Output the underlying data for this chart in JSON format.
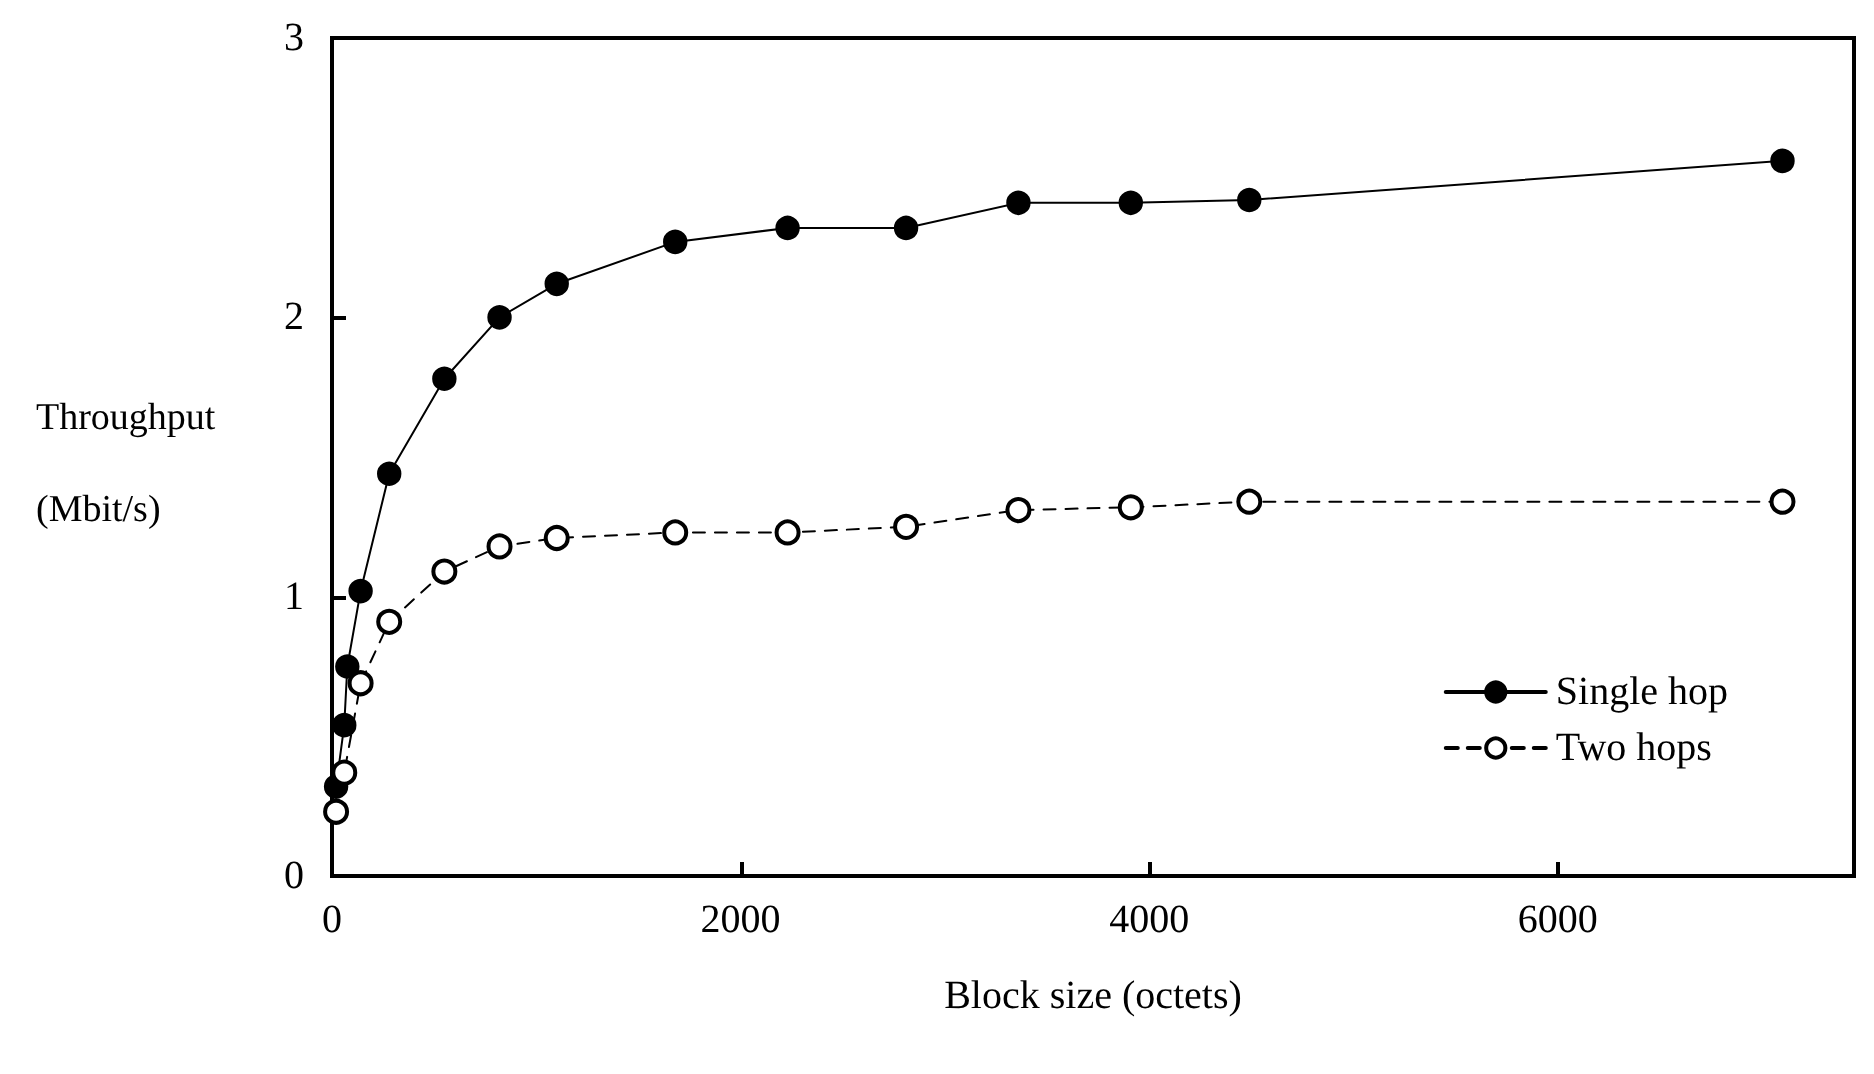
{
  "chart_data": {
    "type": "line",
    "xlabel": "Block size (octets)",
    "ylabel": "Throughput (Mbit/s)",
    "xlim": [
      0,
      7450
    ],
    "xticks": [
      0,
      2000,
      4000,
      6000
    ],
    "ylim": [
      0,
      3
    ],
    "yticks": [
      0,
      1,
      2,
      3
    ],
    "grid": false,
    "legend": "bottom right",
    "marker": "circle",
    "series": [
      {
        "name": "Single hop",
        "color": "#000000",
        "line_style": "solid",
        "x": [
          20,
          60,
          75,
          140,
          280,
          550,
          820,
          1100,
          1680,
          2230,
          2810,
          3360,
          3910,
          4490,
          7100
        ],
        "values": [
          0.32,
          0.54,
          0.75,
          1.02,
          1.44,
          1.78,
          2.0,
          2.12,
          2.27,
          2.32,
          2.32,
          2.41,
          2.41,
          2.42,
          2.56
        ]
      },
      {
        "name": "Two hops",
        "color": "#000000",
        "line_style": "dashed",
        "marker": "emptyCircle",
        "x": [
          20,
          60,
          140,
          280,
          550,
          820,
          1100,
          1680,
          2230,
          2810,
          3360,
          3910,
          4490,
          7100
        ],
        "values": [
          0.23,
          0.37,
          0.69,
          0.91,
          1.09,
          1.18,
          1.21,
          1.23,
          1.23,
          1.25,
          1.31,
          1.32,
          1.34,
          1.34
        ]
      }
    ]
  }
}
